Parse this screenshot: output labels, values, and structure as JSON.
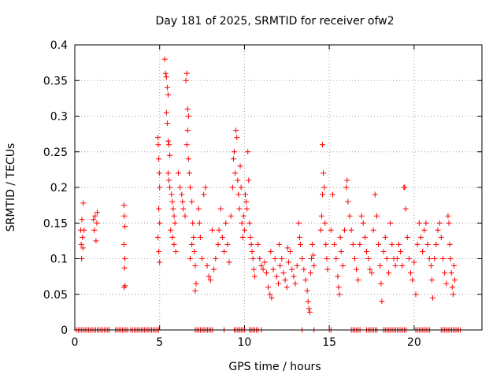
{
  "chart_data": {
    "type": "scatter",
    "title": "Day 181 of 2025, SRMTID for receiver ofw2",
    "xlabel": "GPS time / hours",
    "ylabel": "SRMTID / TECUs",
    "xlim": [
      0,
      24
    ],
    "ylim": [
      0,
      0.4
    ],
    "x_ticks": [
      0,
      5,
      10,
      15,
      20
    ],
    "y_ticks": [
      0,
      0.05,
      0.1,
      0.15,
      0.2,
      0.25,
      0.3,
      0.35,
      0.4
    ],
    "y_tick_labels": [
      "0",
      "0.05",
      "0.1",
      "0.15",
      "0.2",
      "0.25",
      "0.3",
      "0.35",
      "0.4"
    ],
    "grid": true,
    "legend": false,
    "marker": "+",
    "series": [
      {
        "name": "SRMTID",
        "color": "#ff0000",
        "points": [
          [
            0.35,
            0.14
          ],
          [
            0.38,
            0.12
          ],
          [
            0.42,
            0.155
          ],
          [
            0.45,
            0.13
          ],
          [
            0.5,
            0.178
          ],
          [
            0.55,
            0.14
          ],
          [
            0.4,
            0.1
          ],
          [
            0.48,
            0.115
          ],
          [
            1.1,
            0.155
          ],
          [
            1.15,
            0.14
          ],
          [
            1.2,
            0.16
          ],
          [
            1.25,
            0.125
          ],
          [
            1.3,
            0.15
          ],
          [
            1.32,
            0.165
          ],
          [
            2.9,
            0.175
          ],
          [
            2.92,
            0.16
          ],
          [
            2.95,
            0.145
          ],
          [
            2.9,
            0.12
          ],
          [
            2.95,
            0.1
          ],
          [
            2.93,
            0.087
          ],
          [
            2.9,
            0.06
          ],
          [
            2.97,
            0.062
          ],
          [
            4.9,
            0.27
          ],
          [
            4.92,
            0.26
          ],
          [
            4.95,
            0.24
          ],
          [
            4.98,
            0.22
          ],
          [
            5.0,
            0.2
          ],
          [
            4.95,
            0.17
          ],
          [
            5.0,
            0.15
          ],
          [
            4.9,
            0.13
          ],
          [
            4.95,
            0.11
          ],
          [
            5.0,
            0.095
          ],
          [
            5.3,
            0.38
          ],
          [
            5.35,
            0.36
          ],
          [
            5.4,
            0.355
          ],
          [
            5.45,
            0.34
          ],
          [
            5.5,
            0.33
          ],
          [
            5.4,
            0.305
          ],
          [
            5.45,
            0.29
          ],
          [
            5.5,
            0.265
          ],
          [
            5.55,
            0.26
          ],
          [
            5.6,
            0.245
          ],
          [
            5.5,
            0.22
          ],
          [
            5.55,
            0.21
          ],
          [
            5.6,
            0.2
          ],
          [
            5.7,
            0.19
          ],
          [
            5.75,
            0.18
          ],
          [
            5.8,
            0.17
          ],
          [
            5.85,
            0.16
          ],
          [
            5.9,
            0.15
          ],
          [
            5.65,
            0.14
          ],
          [
            5.75,
            0.13
          ],
          [
            5.85,
            0.12
          ],
          [
            5.95,
            0.11
          ],
          [
            6.1,
            0.22
          ],
          [
            6.2,
            0.2
          ],
          [
            6.3,
            0.19
          ],
          [
            6.35,
            0.18
          ],
          [
            6.4,
            0.17
          ],
          [
            6.5,
            0.16
          ],
          [
            6.55,
            0.35
          ],
          [
            6.6,
            0.36
          ],
          [
            6.65,
            0.31
          ],
          [
            6.7,
            0.3
          ],
          [
            6.65,
            0.28
          ],
          [
            6.6,
            0.26
          ],
          [
            6.7,
            0.24
          ],
          [
            6.75,
            0.22
          ],
          [
            6.8,
            0.2
          ],
          [
            6.9,
            0.18
          ],
          [
            6.95,
            0.15
          ],
          [
            7.0,
            0.13
          ],
          [
            7.05,
            0.11
          ],
          [
            7.1,
            0.09
          ],
          [
            7.15,
            0.065
          ],
          [
            7.1,
            0.055
          ],
          [
            6.8,
            0.1
          ],
          [
            6.9,
            0.12
          ],
          [
            7.3,
            0.17
          ],
          [
            7.35,
            0.15
          ],
          [
            7.4,
            0.13
          ],
          [
            7.5,
            0.1
          ],
          [
            7.6,
            0.19
          ],
          [
            7.7,
            0.2
          ],
          [
            7.8,
            0.09
          ],
          [
            7.9,
            0.075
          ],
          [
            8.0,
            0.07
          ],
          [
            8.1,
            0.14
          ],
          [
            8.2,
            0.085
          ],
          [
            8.3,
            0.1
          ],
          [
            8.45,
            0.12
          ],
          [
            8.5,
            0.14
          ],
          [
            8.6,
            0.17
          ],
          [
            8.7,
            0.13
          ],
          [
            8.8,
            0.11
          ],
          [
            8.9,
            0.15
          ],
          [
            9.0,
            0.12
          ],
          [
            9.1,
            0.095
          ],
          [
            9.2,
            0.16
          ],
          [
            9.3,
            0.2
          ],
          [
            9.35,
            0.24
          ],
          [
            9.4,
            0.25
          ],
          [
            9.45,
            0.22
          ],
          [
            9.5,
            0.28
          ],
          [
            9.55,
            0.27
          ],
          [
            9.6,
            0.21
          ],
          [
            9.65,
            0.19
          ],
          [
            9.7,
            0.17
          ],
          [
            9.75,
            0.23
          ],
          [
            9.8,
            0.2
          ],
          [
            9.85,
            0.15
          ],
          [
            9.9,
            0.13
          ],
          [
            9.95,
            0.16
          ],
          [
            10.0,
            0.14
          ],
          [
            10.05,
            0.19
          ],
          [
            10.1,
            0.18
          ],
          [
            10.15,
            0.17
          ],
          [
            10.2,
            0.25
          ],
          [
            10.25,
            0.21
          ],
          [
            10.3,
            0.15
          ],
          [
            10.35,
            0.13
          ],
          [
            10.4,
            0.12
          ],
          [
            10.45,
            0.11
          ],
          [
            10.5,
            0.1
          ],
          [
            10.55,
            0.085
          ],
          [
            10.6,
            0.075
          ],
          [
            10.8,
            0.12
          ],
          [
            10.9,
            0.1
          ],
          [
            11.0,
            0.09
          ],
          [
            11.1,
            0.085
          ],
          [
            11.2,
            0.095
          ],
          [
            11.3,
            0.08
          ],
          [
            11.4,
            0.06
          ],
          [
            11.5,
            0.05
          ],
          [
            11.6,
            0.045
          ],
          [
            11.7,
            0.085
          ],
          [
            11.8,
            0.1
          ],
          [
            11.9,
            0.075
          ],
          [
            12.0,
            0.065
          ],
          [
            12.1,
            0.09
          ],
          [
            12.2,
            0.1
          ],
          [
            12.3,
            0.08
          ],
          [
            12.4,
            0.07
          ],
          [
            12.5,
            0.06
          ],
          [
            12.6,
            0.095
          ],
          [
            12.7,
            0.11
          ],
          [
            12.8,
            0.085
          ],
          [
            12.9,
            0.075
          ],
          [
            13.0,
            0.065
          ],
          [
            13.1,
            0.09
          ],
          [
            13.2,
            0.15
          ],
          [
            13.25,
            0.13
          ],
          [
            13.3,
            0.12
          ],
          [
            13.4,
            0.1
          ],
          [
            13.5,
            0.085
          ],
          [
            13.6,
            0.07
          ],
          [
            13.7,
            0.055
          ],
          [
            13.75,
            0.04
          ],
          [
            13.8,
            0.03
          ],
          [
            13.85,
            0.025
          ],
          [
            13.9,
            0.08
          ],
          [
            13.95,
            0.1
          ],
          [
            14.0,
            0.12
          ],
          [
            14.05,
            0.105
          ],
          [
            14.1,
            0.09
          ],
          [
            11.55,
            0.11
          ],
          [
            12.05,
            0.12
          ],
          [
            12.55,
            0.115
          ],
          [
            14.5,
            0.14
          ],
          [
            14.55,
            0.16
          ],
          [
            14.6,
            0.19
          ],
          [
            14.65,
            0.22
          ],
          [
            14.6,
            0.26
          ],
          [
            14.7,
            0.2
          ],
          [
            14.75,
            0.15
          ],
          [
            14.8,
            0.12
          ],
          [
            14.85,
            0.1
          ],
          [
            14.9,
            0.085
          ],
          [
            15.1,
            0.14
          ],
          [
            15.2,
            0.19
          ],
          [
            15.3,
            0.12
          ],
          [
            15.4,
            0.1
          ],
          [
            15.5,
            0.075
          ],
          [
            15.55,
            0.06
          ],
          [
            15.6,
            0.05
          ],
          [
            15.65,
            0.13
          ],
          [
            15.7,
            0.11
          ],
          [
            15.8,
            0.09
          ],
          [
            15.9,
            0.14
          ],
          [
            16.0,
            0.2
          ],
          [
            16.05,
            0.21
          ],
          [
            16.1,
            0.18
          ],
          [
            16.2,
            0.16
          ],
          [
            16.3,
            0.14
          ],
          [
            16.4,
            0.12
          ],
          [
            16.5,
            0.1
          ],
          [
            16.6,
            0.085
          ],
          [
            16.7,
            0.07
          ],
          [
            16.8,
            0.12
          ],
          [
            16.9,
            0.16
          ],
          [
            17.0,
            0.15
          ],
          [
            17.1,
            0.13
          ],
          [
            17.2,
            0.11
          ],
          [
            17.3,
            0.1
          ],
          [
            17.4,
            0.085
          ],
          [
            17.5,
            0.08
          ],
          [
            17.6,
            0.14
          ],
          [
            17.7,
            0.19
          ],
          [
            17.8,
            0.16
          ],
          [
            17.9,
            0.12
          ],
          [
            18.0,
            0.09
          ],
          [
            18.05,
            0.065
          ],
          [
            18.1,
            0.04
          ],
          [
            18.2,
            0.11
          ],
          [
            18.3,
            0.13
          ],
          [
            18.4,
            0.1
          ],
          [
            18.5,
            0.08
          ],
          [
            18.6,
            0.15
          ],
          [
            18.7,
            0.12
          ],
          [
            18.8,
            0.1
          ],
          [
            18.9,
            0.09
          ],
          [
            19.0,
            0.1
          ],
          [
            19.1,
            0.12
          ],
          [
            19.2,
            0.11
          ],
          [
            19.3,
            0.09
          ],
          [
            19.4,
            0.2
          ],
          [
            19.45,
            0.2
          ],
          [
            19.5,
            0.17
          ],
          [
            19.6,
            0.13
          ],
          [
            19.7,
            0.1
          ],
          [
            19.8,
            0.08
          ],
          [
            19.9,
            0.07
          ],
          [
            20.0,
            0.095
          ],
          [
            20.1,
            0.05
          ],
          [
            20.2,
            0.12
          ],
          [
            20.3,
            0.15
          ],
          [
            20.4,
            0.13
          ],
          [
            20.5,
            0.11
          ],
          [
            20.6,
            0.14
          ],
          [
            20.7,
            0.15
          ],
          [
            20.8,
            0.12
          ],
          [
            20.9,
            0.1
          ],
          [
            21.0,
            0.09
          ],
          [
            21.05,
            0.07
          ],
          [
            21.1,
            0.045
          ],
          [
            21.2,
            0.1
          ],
          [
            21.3,
            0.12
          ],
          [
            21.4,
            0.14
          ],
          [
            21.5,
            0.15
          ],
          [
            21.6,
            0.13
          ],
          [
            21.7,
            0.1
          ],
          [
            21.8,
            0.08
          ],
          [
            21.9,
            0.065
          ],
          [
            22.0,
            0.16
          ],
          [
            22.05,
            0.15
          ],
          [
            22.1,
            0.12
          ],
          [
            22.15,
            0.1
          ],
          [
            22.2,
            0.08
          ],
          [
            22.25,
            0.06
          ],
          [
            22.3,
            0.05
          ],
          [
            22.35,
            0.09
          ],
          [
            22.4,
            0.07
          ]
        ]
      }
    ],
    "zero_line_segments": [
      [
        0.1,
        2.1
      ],
      [
        2.4,
        3.2
      ],
      [
        3.3,
        5.0
      ],
      [
        7.1,
        8.2
      ],
      [
        8.8,
        8.9
      ],
      [
        9.4,
        10.1
      ],
      [
        10.3,
        10.9
      ],
      [
        11.0,
        11.05
      ],
      [
        13.4,
        13.45
      ],
      [
        14.1,
        14.2
      ],
      [
        15.0,
        15.2
      ],
      [
        16.3,
        16.9
      ],
      [
        17.2,
        17.9
      ],
      [
        18.2,
        19.6
      ],
      [
        20.1,
        21.0
      ],
      [
        21.6,
        22.8
      ]
    ]
  }
}
